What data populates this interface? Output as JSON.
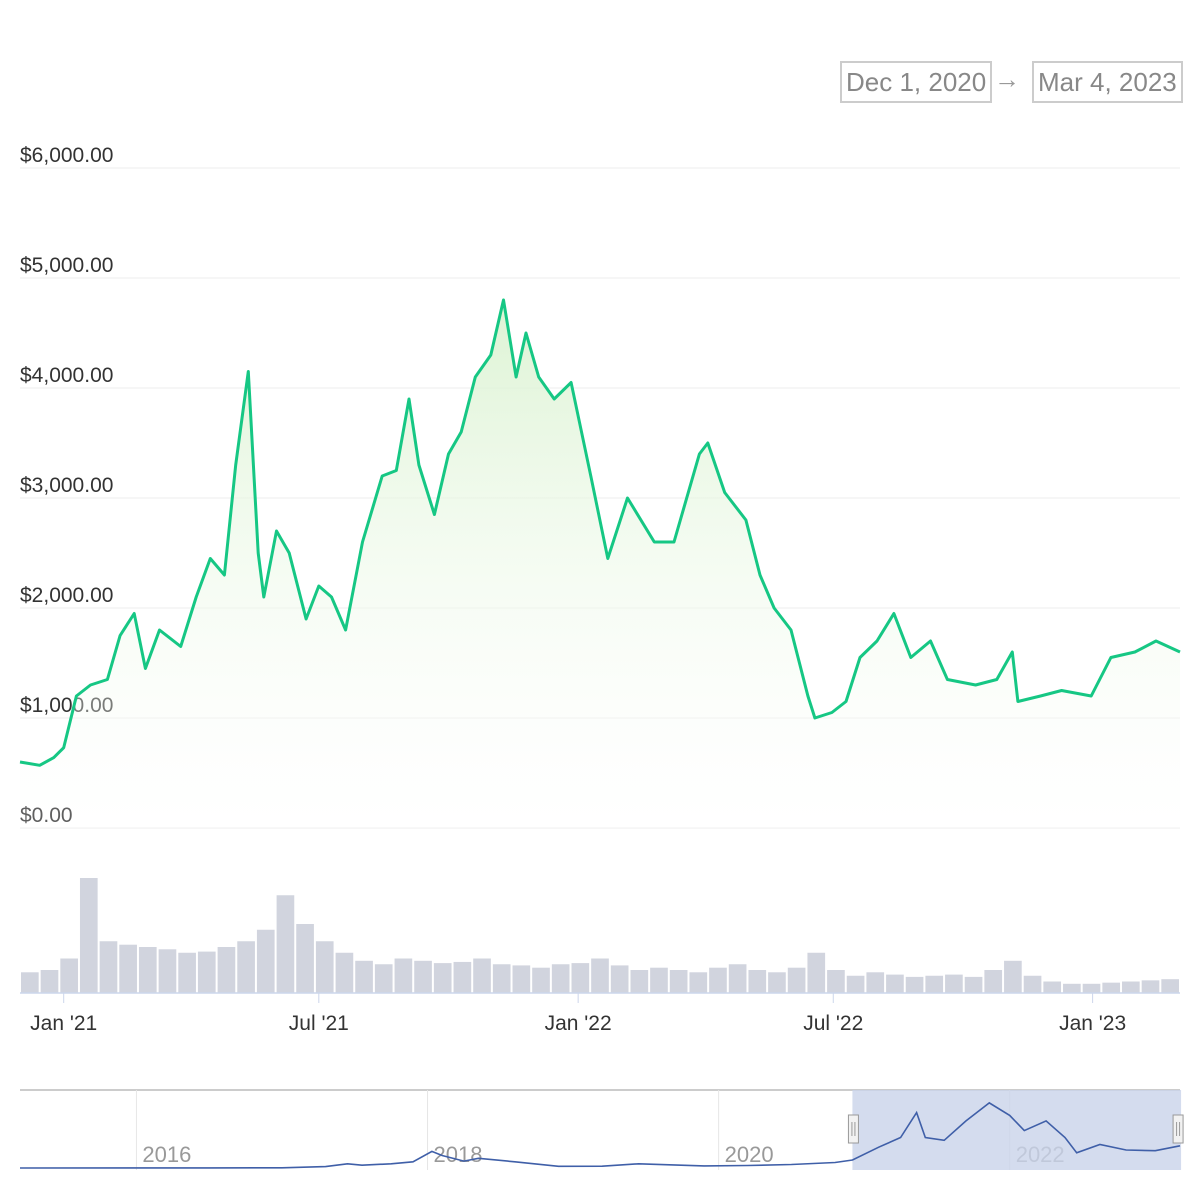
{
  "range_selector": {
    "from": "Dec 1, 2020",
    "arrow": "→",
    "to": "Mar 4, 2023"
  },
  "colors": {
    "line": "#16c784",
    "fill_top": "#d9f2cf",
    "volume": "#c5c9d6",
    "navigator_line": "#3f5fa8",
    "navigator_mask": "#c9d3ea"
  },
  "chart_data": {
    "type": "line",
    "title": "",
    "ylabel": "",
    "xlabel": "",
    "ylim": [
      0,
      6000
    ],
    "yticks": [
      "$0.00",
      "$1,000.00",
      "$2,000.00",
      "$3,000.00",
      "$4,000.00",
      "$5,000.00",
      "$6,000.00"
    ],
    "ytick_values": [
      0,
      1000,
      2000,
      3000,
      4000,
      5000,
      6000
    ],
    "xlim": [
      "2020-12-01",
      "2023-03-04"
    ],
    "xticks": [
      {
        "label": "Jan '21",
        "date": "2021-01-01"
      },
      {
        "label": "Jul '21",
        "date": "2021-07-01"
      },
      {
        "label": "Jan '22",
        "date": "2022-01-01"
      },
      {
        "label": "Jul '22",
        "date": "2022-07-01"
      },
      {
        "label": "Jan '23",
        "date": "2023-01-01"
      }
    ],
    "grid": true,
    "series": [
      {
        "points": [
          [
            "2020-12-01",
            600
          ],
          [
            "2020-12-15",
            570
          ],
          [
            "2020-12-25",
            640
          ],
          [
            "2021-01-01",
            730
          ],
          [
            "2021-01-10",
            1200
          ],
          [
            "2021-01-20",
            1300
          ],
          [
            "2021-02-01",
            1350
          ],
          [
            "2021-02-10",
            1750
          ],
          [
            "2021-02-20",
            1950
          ],
          [
            "2021-02-28",
            1450
          ],
          [
            "2021-03-10",
            1800
          ],
          [
            "2021-03-25",
            1650
          ],
          [
            "2021-04-05",
            2100
          ],
          [
            "2021-04-15",
            2450
          ],
          [
            "2021-04-25",
            2300
          ],
          [
            "2021-05-03",
            3300
          ],
          [
            "2021-05-12",
            4150
          ],
          [
            "2021-05-19",
            2500
          ],
          [
            "2021-05-23",
            2100
          ],
          [
            "2021-06-01",
            2700
          ],
          [
            "2021-06-10",
            2500
          ],
          [
            "2021-06-22",
            1900
          ],
          [
            "2021-07-01",
            2200
          ],
          [
            "2021-07-10",
            2100
          ],
          [
            "2021-07-20",
            1800
          ],
          [
            "2021-08-01",
            2600
          ],
          [
            "2021-08-15",
            3200
          ],
          [
            "2021-08-25",
            3250
          ],
          [
            "2021-09-03",
            3900
          ],
          [
            "2021-09-10",
            3300
          ],
          [
            "2021-09-21",
            2850
          ],
          [
            "2021-10-01",
            3400
          ],
          [
            "2021-10-10",
            3600
          ],
          [
            "2021-10-20",
            4100
          ],
          [
            "2021-10-31",
            4300
          ],
          [
            "2021-11-09",
            4800
          ],
          [
            "2021-11-18",
            4100
          ],
          [
            "2021-11-25",
            4500
          ],
          [
            "2021-12-04",
            4100
          ],
          [
            "2021-12-15",
            3900
          ],
          [
            "2021-12-27",
            4050
          ],
          [
            "2022-01-10",
            3200
          ],
          [
            "2022-01-22",
            2450
          ],
          [
            "2022-02-05",
            3000
          ],
          [
            "2022-02-24",
            2600
          ],
          [
            "2022-03-10",
            2600
          ],
          [
            "2022-03-28",
            3400
          ],
          [
            "2022-04-03",
            3500
          ],
          [
            "2022-04-15",
            3050
          ],
          [
            "2022-04-30",
            2800
          ],
          [
            "2022-05-10",
            2300
          ],
          [
            "2022-05-20",
            2000
          ],
          [
            "2022-06-01",
            1800
          ],
          [
            "2022-06-13",
            1200
          ],
          [
            "2022-06-18",
            1000
          ],
          [
            "2022-06-30",
            1050
          ],
          [
            "2022-07-10",
            1150
          ],
          [
            "2022-07-20",
            1550
          ],
          [
            "2022-08-01",
            1700
          ],
          [
            "2022-08-13",
            1950
          ],
          [
            "2022-08-25",
            1550
          ],
          [
            "2022-09-08",
            1700
          ],
          [
            "2022-09-20",
            1350
          ],
          [
            "2022-10-10",
            1300
          ],
          [
            "2022-10-25",
            1350
          ],
          [
            "2022-11-05",
            1600
          ],
          [
            "2022-11-09",
            1150
          ],
          [
            "2022-11-25",
            1200
          ],
          [
            "2022-12-10",
            1250
          ],
          [
            "2022-12-31",
            1200
          ],
          [
            "2023-01-14",
            1550
          ],
          [
            "2023-01-31",
            1600
          ],
          [
            "2023-02-15",
            1700
          ],
          [
            "2023-03-04",
            1600
          ]
        ]
      }
    ],
    "volume_relative": [
      18,
      20,
      30,
      100,
      45,
      42,
      40,
      38,
      35,
      36,
      40,
      45,
      55,
      85,
      60,
      45,
      35,
      28,
      25,
      30,
      28,
      26,
      27,
      30,
      25,
      24,
      22,
      25,
      26,
      30,
      24,
      20,
      22,
      20,
      18,
      22,
      25,
      20,
      18,
      22,
      35,
      20,
      15,
      18,
      16,
      14,
      15,
      16,
      14,
      20,
      28,
      15,
      10,
      8,
      8,
      9,
      10,
      11,
      12
    ],
    "navigator": {
      "xticks": [
        "2016",
        "2018",
        "2020",
        "2022"
      ],
      "xtick_years": [
        2016,
        2018,
        2020,
        2022
      ],
      "xlim_years": [
        2015.2,
        2023.17
      ],
      "selected": [
        "2020-12-01",
        "2023-03-04"
      ],
      "points": [
        [
          2015.2,
          1
        ],
        [
          2016.5,
          10
        ],
        [
          2017.0,
          12
        ],
        [
          2017.3,
          100
        ],
        [
          2017.45,
          300
        ],
        [
          2017.55,
          200
        ],
        [
          2017.75,
          300
        ],
        [
          2017.9,
          450
        ],
        [
          2018.03,
          1200
        ],
        [
          2018.1,
          900
        ],
        [
          2018.25,
          500
        ],
        [
          2018.35,
          700
        ],
        [
          2018.6,
          450
        ],
        [
          2018.9,
          120
        ],
        [
          2019.2,
          130
        ],
        [
          2019.45,
          300
        ],
        [
          2019.9,
          150
        ],
        [
          2020.2,
          180
        ],
        [
          2020.5,
          250
        ],
        [
          2020.8,
          400
        ],
        [
          2020.92,
          580
        ],
        [
          2021.1,
          1500
        ],
        [
          2021.25,
          2200
        ],
        [
          2021.36,
          4000
        ],
        [
          2021.42,
          2200
        ],
        [
          2021.55,
          2000
        ],
        [
          2021.7,
          3400
        ],
        [
          2021.86,
          4700
        ],
        [
          2022.0,
          3800
        ],
        [
          2022.1,
          2700
        ],
        [
          2022.25,
          3400
        ],
        [
          2022.38,
          2200
        ],
        [
          2022.46,
          1100
        ],
        [
          2022.62,
          1700
        ],
        [
          2022.8,
          1300
        ],
        [
          2023.0,
          1250
        ],
        [
          2023.17,
          1600
        ]
      ]
    }
  }
}
